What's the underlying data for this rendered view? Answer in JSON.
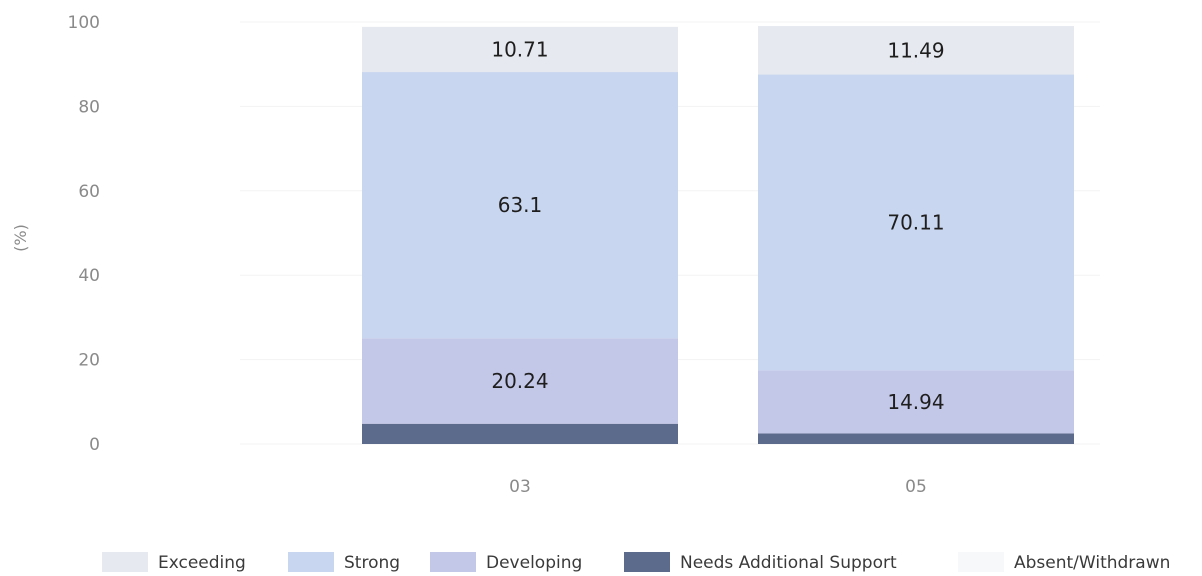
{
  "chart_data": {
    "type": "bar",
    "stacked": true,
    "ylabel": "(%)",
    "xlabel": "",
    "ylim": [
      0,
      100
    ],
    "yticks": [
      "0",
      "20",
      "40",
      "60",
      "80",
      "100"
    ],
    "categories": [
      "03",
      "05"
    ],
    "series": [
      {
        "name": "Needs Additional Support",
        "color": "#5c6b8c",
        "values": [
          4.8,
          2.5
        ],
        "labels": [
          "",
          ""
        ]
      },
      {
        "name": "Developing",
        "color": "#c4c8e8",
        "values": [
          20.24,
          14.94
        ],
        "labels": [
          "20.24",
          "14.94"
        ]
      },
      {
        "name": "Strong",
        "color": "#c9d6ef",
        "values": [
          63.1,
          70.11
        ],
        "labels": [
          "63.1",
          "70.11"
        ]
      },
      {
        "name": "Exceeding",
        "color": "#e6e9ef",
        "values": [
          10.71,
          11.49
        ],
        "labels": [
          "10.71",
          "11.49"
        ]
      }
    ],
    "legend": {
      "position": "bottom",
      "entries": [
        {
          "name": "Exceeding",
          "color": "#e6e9ef"
        },
        {
          "name": "Strong",
          "color": "#c9d6ef"
        },
        {
          "name": "Developing",
          "color": "#c4c8e8"
        },
        {
          "name": "Needs Additional Support",
          "color": "#5c6b8c"
        },
        {
          "name": "Absent/Withdrawn",
          "color": "#f7f8fa"
        }
      ]
    },
    "grid": true
  }
}
